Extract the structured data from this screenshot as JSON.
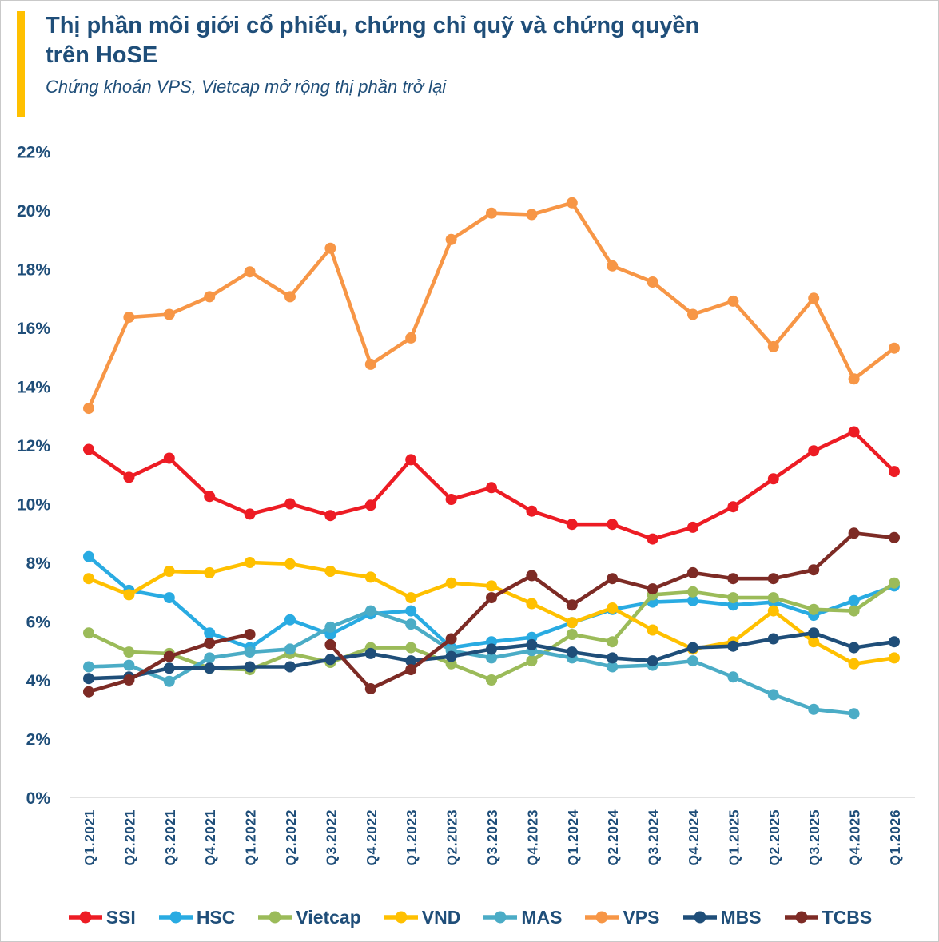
{
  "header": {
    "title_line1": "Thị phần môi giới cổ phiếu, chứng chỉ quỹ và chứng quyền",
    "title_line2": "trên HoSE",
    "subtitle": "Chứng khoán VPS, Vietcap mở rộng thị phần trở lại",
    "accent_color": "#FFC000",
    "text_color": "#1F4E79"
  },
  "chart_data": {
    "type": "line",
    "title": "Thị phần môi giới cổ phiếu, chứng chỉ quỹ và chứng quyền trên HoSE",
    "subtitle": "Chứng khoán VPS, Vietcap mở rộng thị phần trở lại",
    "categories": [
      "Q1.2021",
      "Q2.2021",
      "Q3.2021",
      "Q4.2021",
      "Q1.2022",
      "Q2.2022",
      "Q3.2022",
      "Q4.2022",
      "Q1.2023",
      "Q2.2023",
      "Q3.2023",
      "Q4.2023",
      "Q1.2024",
      "Q2.2024",
      "Q3.2024",
      "Q4.2024",
      "Q1.2025",
      "Q2.2025",
      "Q3.2025",
      "Q4.2025",
      "Q1.2026"
    ],
    "unit": "%",
    "ylim": [
      0,
      22
    ],
    "ytick_step": 2,
    "grid": false,
    "legend_position": "bottom",
    "axis_text_color": "#1F4E79",
    "axis_line_color": "#D9D9D9",
    "series": [
      {
        "name": "SSI",
        "color": "#ED1C24",
        "values": [
          11.85,
          10.9,
          11.55,
          10.25,
          9.65,
          10.0,
          9.6,
          9.95,
          11.5,
          10.15,
          10.55,
          9.75,
          9.3,
          9.3,
          8.8,
          9.2,
          9.9,
          10.85,
          11.8,
          12.45,
          11.1
        ]
      },
      {
        "name": "HSC",
        "color": "#29ABE2",
        "values": [
          8.2,
          7.05,
          6.8,
          5.6,
          5.1,
          6.05,
          5.55,
          6.25,
          6.35,
          5.1,
          5.3,
          5.45,
          5.95,
          6.4,
          6.65,
          6.7,
          6.55,
          6.65,
          6.2,
          6.7,
          7.2
        ]
      },
      {
        "name": "Vietcap",
        "color": "#9BBB59",
        "values": [
          5.6,
          4.95,
          4.9,
          4.4,
          4.35,
          4.9,
          4.6,
          5.1,
          5.1,
          4.55,
          4.0,
          4.65,
          5.55,
          5.3,
          6.9,
          7.0,
          6.8,
          6.8,
          6.4,
          6.35,
          7.3
        ]
      },
      {
        "name": "VND",
        "color": "#FFC000",
        "values": [
          7.45,
          6.9,
          7.7,
          7.65,
          8.0,
          7.95,
          7.7,
          7.5,
          6.8,
          7.3,
          7.2,
          6.6,
          5.95,
          6.45,
          5.7,
          5.05,
          5.3,
          6.35,
          5.3,
          4.55,
          4.75
        ]
      },
      {
        "name": "MAS",
        "color": "#4BACC6",
        "values": [
          4.45,
          4.5,
          3.95,
          4.75,
          4.95,
          5.05,
          5.8,
          6.35,
          5.9,
          5.0,
          4.75,
          5.0,
          4.75,
          4.45,
          4.5,
          4.65,
          4.1,
          3.5,
          3.0,
          2.85,
          null
        ]
      },
      {
        "name": "VPS",
        "color": "#F79646",
        "values": [
          13.25,
          16.35,
          16.45,
          17.05,
          17.9,
          17.05,
          18.7,
          14.75,
          15.65,
          19.0,
          19.9,
          19.85,
          20.25,
          18.1,
          17.55,
          16.45,
          16.9,
          15.35,
          17.0,
          14.25,
          15.3
        ]
      },
      {
        "name": "MBS",
        "color": "#1F4E79",
        "values": [
          4.05,
          4.1,
          4.4,
          4.4,
          4.45,
          4.45,
          4.7,
          4.9,
          4.65,
          4.8,
          5.05,
          5.2,
          4.95,
          4.75,
          4.65,
          5.1,
          5.15,
          5.4,
          5.6,
          5.1,
          5.3
        ]
      },
      {
        "name": "TCBS",
        "color": "#7D2B25",
        "values": [
          3.6,
          4.0,
          4.8,
          5.25,
          5.55,
          null,
          5.2,
          3.7,
          4.35,
          5.4,
          6.8,
          7.55,
          6.55,
          7.45,
          7.1,
          7.65,
          7.45,
          7.45,
          7.75,
          9.0,
          8.85
        ]
      }
    ]
  }
}
